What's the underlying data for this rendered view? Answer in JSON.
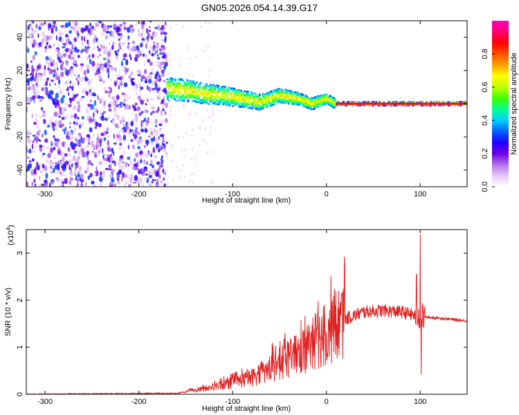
{
  "title": "GN05.2026.054.14.39.G17",
  "chart_data": [
    {
      "type": "heatmap",
      "xlabel": "Height of straight line (km)",
      "ylabel": "Frequency (Hz)",
      "xlim": [
        -320,
        150
      ],
      "ylim": [
        -50,
        50
      ],
      "xticks": [
        -300,
        -200,
        -100,
        0,
        100
      ],
      "yticks": [
        -40,
        -20,
        0,
        20,
        40
      ],
      "colorbar": {
        "label": "Normalized spectral amplitude",
        "range": [
          0,
          1
        ],
        "ticks": [
          "0.0",
          "0.2",
          "0.4",
          "0.6",
          "0.8"
        ],
        "tick_values": [
          0,
          0.2,
          0.4,
          0.6,
          0.8
        ],
        "colormap": [
          "#ffffff",
          "#e6c8f5",
          "#b070e8",
          "#7000e8",
          "#2000ff",
          "#0060ff",
          "#00d0ff",
          "#00ff90",
          "#40ff00",
          "#c0ff00",
          "#ffff00",
          "#ffa000",
          "#ff5000",
          "#ff0000",
          "#ff0070",
          "#ff00c0"
        ]
      },
      "regions": [
        {
          "name": "noise",
          "x": [
            -320,
            -170
          ],
          "y": [
            -50,
            50
          ],
          "amplitude": 0.25
        },
        {
          "name": "sparse-noise",
          "x": [
            -170,
            -120
          ],
          "y": [
            -50,
            50
          ],
          "amplitude": 0.05
        },
        {
          "name": "signal-band",
          "x": [
            -170,
            150
          ]
        }
      ],
      "signal_trace": [
        {
          "x": -170,
          "y": 9
        },
        {
          "x": -150,
          "y": 8
        },
        {
          "x": -130,
          "y": 6
        },
        {
          "x": -110,
          "y": 5
        },
        {
          "x": -90,
          "y": 3
        },
        {
          "x": -70,
          "y": 1
        },
        {
          "x": -50,
          "y": 5
        },
        {
          "x": -30,
          "y": 3
        },
        {
          "x": -15,
          "y": 0
        },
        {
          "x": -5,
          "y": 2
        },
        {
          "x": 0,
          "y": 3
        },
        {
          "x": 10,
          "y": 0
        },
        {
          "x": 95,
          "y": 0
        },
        {
          "x": 150,
          "y": 0
        }
      ]
    },
    {
      "type": "line",
      "xlabel": "Height of straight line (km)",
      "ylabel": "SNR (10 * v/v)",
      "yscale_label": "(x10",
      "yscale_exp": "4",
      "yscale_close": ")",
      "xlim": [
        -320,
        150
      ],
      "ylim": [
        0,
        3.5
      ],
      "xticks": [
        -300,
        -200,
        -100,
        0,
        100
      ],
      "yticks": [
        0,
        1,
        2,
        3
      ],
      "color": "#e02020",
      "series_envelope": [
        {
          "x": -320,
          "y": 0.0
        },
        {
          "x": -160,
          "y": 0.02
        },
        {
          "x": -140,
          "y": 0.08
        },
        {
          "x": -120,
          "y": 0.15
        },
        {
          "x": -100,
          "y": 0.25
        },
        {
          "x": -80,
          "y": 0.35
        },
        {
          "x": -60,
          "y": 0.55
        },
        {
          "x": -40,
          "y": 0.75
        },
        {
          "x": -20,
          "y": 1.0
        },
        {
          "x": 0,
          "y": 1.3
        },
        {
          "x": 20,
          "y": 1.6
        },
        {
          "x": 40,
          "y": 1.75
        },
        {
          "x": 60,
          "y": 1.78
        },
        {
          "x": 80,
          "y": 1.75
        },
        {
          "x": 90,
          "y": 1.7
        },
        {
          "x": 100,
          "y": 1.65
        },
        {
          "x": 120,
          "y": 1.62
        },
        {
          "x": 150,
          "y": 1.56
        }
      ],
      "spikes": [
        {
          "x": 100,
          "y": 3.4
        },
        {
          "x": 101,
          "y": 0.42
        },
        {
          "x": 96,
          "y": 2.55
        }
      ]
    }
  ]
}
